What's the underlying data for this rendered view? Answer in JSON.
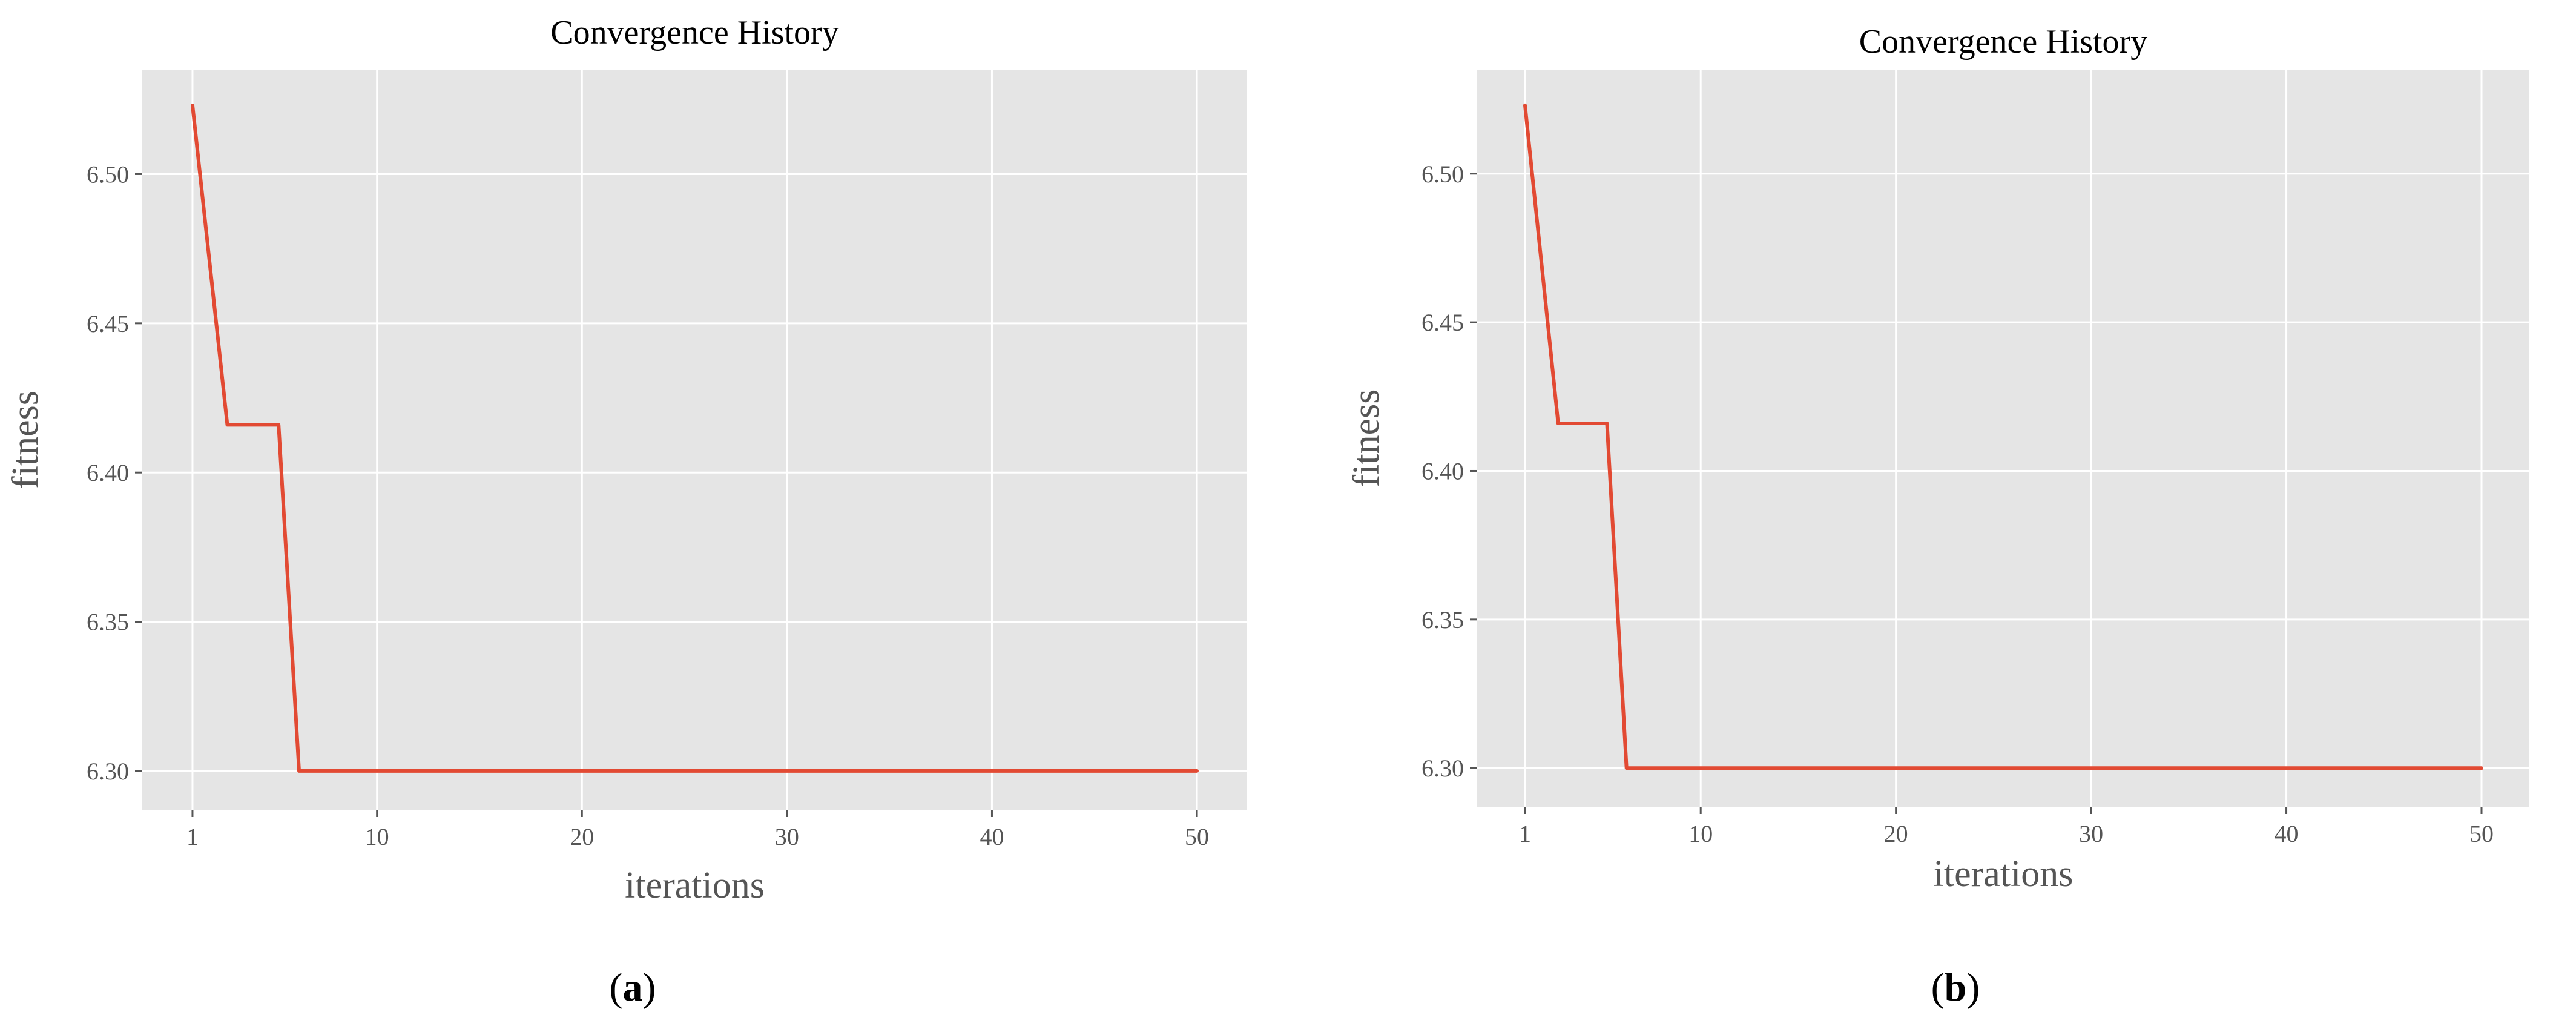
{
  "figure": {
    "panels": [
      {
        "caption_open": "(",
        "caption_letter": "a",
        "caption_close": ")"
      },
      {
        "caption_open": "(",
        "caption_letter": "b",
        "caption_close": ")"
      }
    ]
  },
  "colors": {
    "series": "#e24a33",
    "plot_background": "#e5e5e5",
    "grid": "#ffffff",
    "tick_text": "#555555"
  },
  "chart_data": [
    {
      "type": "line",
      "title": "Convergence History",
      "xlabel": "iterations",
      "ylabel": "fitness",
      "xlim": [
        -1.45,
        52.45
      ],
      "ylim": [
        6.287,
        6.535
      ],
      "xticks": [
        1,
        10,
        20,
        30,
        40,
        50
      ],
      "xtick_labels": [
        "1",
        "10",
        "20",
        "30",
        "40",
        "50"
      ],
      "yticks": [
        6.3,
        6.35,
        6.4,
        6.45,
        6.5
      ],
      "ytick_labels": [
        "6.30",
        "6.35",
        "6.40",
        "6.45",
        "6.50"
      ],
      "grid": true,
      "series": [
        {
          "color": "#e24a33",
          "x": [
            1,
            2.7,
            4.1,
            5.2,
            6.2,
            50
          ],
          "y": [
            6.523,
            6.416,
            6.416,
            6.416,
            6.3,
            6.3
          ]
        }
      ]
    },
    {
      "type": "line",
      "title": "Convergence History",
      "xlabel": "iterations",
      "ylabel": "fitness",
      "xlim": [
        -1.45,
        52.45
      ],
      "ylim": [
        6.287,
        6.535
      ],
      "xticks": [
        1,
        10,
        20,
        30,
        40,
        50
      ],
      "xtick_labels": [
        "1",
        "10",
        "20",
        "30",
        "40",
        "50"
      ],
      "yticks": [
        6.3,
        6.35,
        6.4,
        6.45,
        6.5
      ],
      "ytick_labels": [
        "6.30",
        "6.35",
        "6.40",
        "6.45",
        "6.50"
      ],
      "grid": true,
      "series": [
        {
          "color": "#e24a33",
          "x": [
            1,
            2.7,
            4.1,
            5.2,
            6.2,
            50
          ],
          "y": [
            6.523,
            6.416,
            6.416,
            6.416,
            6.3,
            6.3
          ]
        }
      ]
    }
  ]
}
